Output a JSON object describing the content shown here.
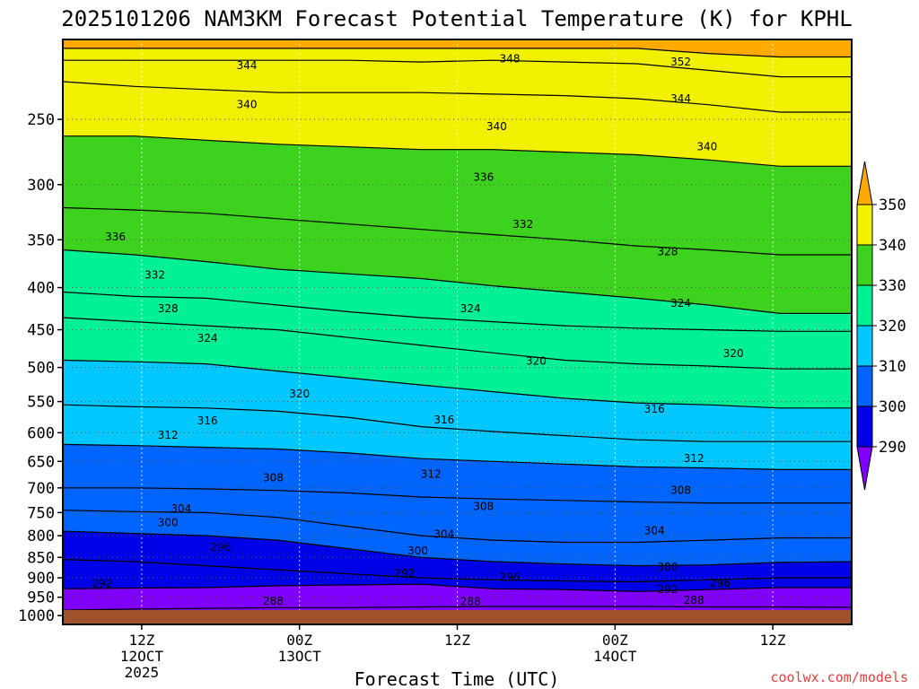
{
  "title": "2025101206 NAM3KM Forecast Potential Temperature (K) for KPHL",
  "credit": "coolwx.com/models",
  "chart_data": {
    "type": "heatmap",
    "title": "2025101206 NAM3KM Forecast Potential Temperature (K) for KPHL",
    "xlabel": "Forecast Time (UTC)",
    "ylabel": "",
    "y_ticks": [
      "250",
      "300",
      "350",
      "400",
      "450",
      "500",
      "550",
      "600",
      "650",
      "700",
      "750",
      "800",
      "850",
      "900",
      "950",
      "1000"
    ],
    "y_tick_values": [
      250,
      300,
      350,
      400,
      450,
      500,
      550,
      600,
      650,
      700,
      750,
      800,
      850,
      900,
      950,
      1000
    ],
    "x_ticks": [
      {
        "l1": "12Z",
        "l2": "12OCT",
        "l3": "2025",
        "hour": 6
      },
      {
        "l1": "00Z",
        "l2": "13OCT",
        "l3": "",
        "hour": 18
      },
      {
        "l1": "12Z",
        "l2": "",
        "l3": "",
        "hour": 30
      },
      {
        "l1": "00Z",
        "l2": "14OCT",
        "l3": "",
        "hour": 42
      },
      {
        "l1": "12Z",
        "l2": "",
        "l3": "",
        "hour": 54
      }
    ],
    "x_range_hours": [
      0,
      60
    ],
    "y_range_hpa": [
      200,
      1025
    ],
    "legend_bounds": [
      "290",
      "300",
      "310",
      "320",
      "330",
      "340",
      "350"
    ],
    "legend_colors": [
      "#8000ff",
      "#0000e6",
      "#0064ff",
      "#00c8ff",
      "#00f096",
      "#3cd21e",
      "#f0f000",
      "#ffaa00"
    ],
    "contour_interval": 4,
    "contours": [
      {
        "value": 288,
        "pres": [
          985,
          982,
          980,
          978,
          978,
          976,
          975,
          975,
          975,
          976,
          976,
          977
        ]
      },
      {
        "value": 292,
        "pres": [
          928,
          926,
          925,
          920,
          918,
          916,
          928,
          930,
          935,
          930,
          925,
          925
        ]
      },
      {
        "value": 296,
        "pres": [
          855,
          860,
          870,
          880,
          890,
          900,
          905,
          908,
          910,
          905,
          900,
          900
        ]
      },
      {
        "value": 300,
        "pres": [
          790,
          795,
          800,
          810,
          830,
          850,
          860,
          866,
          870,
          868,
          862,
          860
        ]
      },
      {
        "value": 304,
        "pres": [
          745,
          748,
          750,
          760,
          780,
          800,
          810,
          815,
          815,
          810,
          805,
          805
        ]
      },
      {
        "value": 308,
        "pres": [
          700,
          700,
          702,
          705,
          710,
          718,
          722,
          725,
          728,
          730,
          730,
          730
        ]
      },
      {
        "value": 312,
        "pres": [
          620,
          622,
          625,
          628,
          635,
          645,
          650,
          655,
          660,
          662,
          665,
          665
        ]
      },
      {
        "value": 316,
        "pres": [
          555,
          558,
          560,
          565,
          575,
          590,
          598,
          605,
          612,
          615,
          615,
          615
        ]
      },
      {
        "value": 320,
        "pres": [
          490,
          492,
          495,
          505,
          515,
          525,
          535,
          545,
          552,
          555,
          560,
          560
        ]
      },
      {
        "value": 324,
        "pres": [
          435,
          440,
          445,
          450,
          460,
          470,
          480,
          490,
          495,
          498,
          502,
          502
        ]
      },
      {
        "value": 328,
        "pres": [
          405,
          410,
          412,
          420,
          428,
          435,
          440,
          445,
          448,
          450,
          452,
          452
        ]
      },
      {
        "value": 332,
        "pres": [
          360,
          365,
          372,
          380,
          385,
          390,
          398,
          405,
          412,
          420,
          430,
          430
        ]
      },
      {
        "value": 336,
        "pres": [
          320,
          322,
          325,
          330,
          335,
          340,
          345,
          350,
          356,
          360,
          365,
          365
        ]
      },
      {
        "value": 340,
        "pres": [
          262,
          262,
          265,
          268,
          270,
          272,
          272,
          274,
          276,
          280,
          285,
          285
        ]
      },
      {
        "value": 344,
        "pres": [
          225,
          228,
          230,
          232,
          232,
          232,
          233,
          234,
          236,
          240,
          245,
          245
        ]
      },
      {
        "value": 348,
        "pres": [
          212,
          212,
          212,
          212,
          212,
          213,
          212,
          213,
          214,
          218,
          222,
          222
        ]
      },
      {
        "value": 352,
        "pres": [
          205,
          205,
          205,
          205,
          205,
          205,
          205,
          205,
          205,
          208,
          210,
          210
        ]
      }
    ],
    "contour_labels": [
      {
        "text": "344",
        "hour": 14,
        "pres": 215
      },
      {
        "text": "348",
        "hour": 34,
        "pres": 211
      },
      {
        "text": "352",
        "hour": 47,
        "pres": 213
      },
      {
        "text": "340",
        "hour": 14,
        "pres": 240
      },
      {
        "text": "344",
        "hour": 47,
        "pres": 236
      },
      {
        "text": "340",
        "hour": 33,
        "pres": 255
      },
      {
        "text": "340",
        "hour": 49,
        "pres": 270
      },
      {
        "text": "336",
        "hour": 32,
        "pres": 294
      },
      {
        "text": "336",
        "hour": 4,
        "pres": 347
      },
      {
        "text": "332",
        "hour": 35,
        "pres": 335
      },
      {
        "text": "332",
        "hour": 7,
        "pres": 386
      },
      {
        "text": "328",
        "hour": 46,
        "pres": 362
      },
      {
        "text": "328",
        "hour": 8,
        "pres": 424
      },
      {
        "text": "324",
        "hour": 31,
        "pres": 424
      },
      {
        "text": "324",
        "hour": 47,
        "pres": 418
      },
      {
        "text": "324",
        "hour": 11,
        "pres": 461
      },
      {
        "text": "320",
        "hour": 36,
        "pres": 491
      },
      {
        "text": "320",
        "hour": 51,
        "pres": 481
      },
      {
        "text": "320",
        "hour": 18,
        "pres": 538
      },
      {
        "text": "316",
        "hour": 11,
        "pres": 580
      },
      {
        "text": "316",
        "hour": 29,
        "pres": 579
      },
      {
        "text": "316",
        "hour": 45,
        "pres": 562
      },
      {
        "text": "312",
        "hour": 8,
        "pres": 604
      },
      {
        "text": "312",
        "hour": 28,
        "pres": 674
      },
      {
        "text": "312",
        "hour": 48,
        "pres": 645
      },
      {
        "text": "308",
        "hour": 16,
        "pres": 680
      },
      {
        "text": "308",
        "hour": 32,
        "pres": 737
      },
      {
        "text": "308",
        "hour": 47,
        "pres": 705
      },
      {
        "text": "304",
        "hour": 9,
        "pres": 742
      },
      {
        "text": "304",
        "hour": 29,
        "pres": 797
      },
      {
        "text": "304",
        "hour": 45,
        "pres": 789
      },
      {
        "text": "300",
        "hour": 8,
        "pres": 771
      },
      {
        "text": "300",
        "hour": 27,
        "pres": 835
      },
      {
        "text": "300",
        "hour": 46,
        "pres": 873
      },
      {
        "text": "296",
        "hour": 12,
        "pres": 826
      },
      {
        "text": "296",
        "hour": 34,
        "pres": 899
      },
      {
        "text": "296",
        "hour": 50,
        "pres": 913
      },
      {
        "text": "292",
        "hour": 3,
        "pres": 915
      },
      {
        "text": "292",
        "hour": 26,
        "pres": 889
      },
      {
        "text": "292",
        "hour": 46,
        "pres": 930
      },
      {
        "text": "288",
        "hour": 16,
        "pres": 960
      },
      {
        "text": "288",
        "hour": 31,
        "pres": 962
      },
      {
        "text": "288",
        "hour": 48,
        "pres": 958
      }
    ]
  }
}
